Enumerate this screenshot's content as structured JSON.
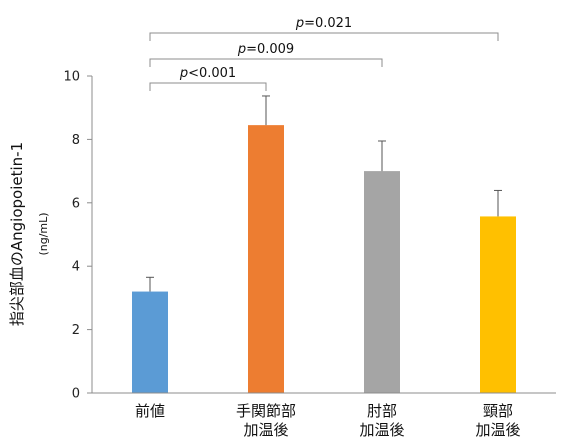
{
  "chart_data": {
    "type": "bar",
    "categories": [
      [
        "前値"
      ],
      [
        "手関節部",
        "加温後"
      ],
      [
        "肘部",
        "加温後"
      ],
      [
        "頸部",
        "加温後"
      ]
    ],
    "values": [
      3.2,
      8.45,
      7.0,
      5.57
    ],
    "errors": [
      0.45,
      0.92,
      0.95,
      0.82
    ],
    "colors": [
      "#5B9BD5",
      "#ED7D31",
      "#A5A5A5",
      "#FFC000"
    ],
    "ylabel": "指尖部血のAngiopoietin-1",
    "yunit": "(ng/mL)",
    "ylim": [
      0,
      10
    ],
    "yticks": [
      0,
      2,
      4,
      6,
      8,
      10
    ],
    "grid": false,
    "comparisons": [
      {
        "from": 0,
        "to": 1,
        "p_symbol": "p",
        "p_text": "<0.001"
      },
      {
        "from": 0,
        "to": 2,
        "p_symbol": "p",
        "p_text": "=0.009"
      },
      {
        "from": 0,
        "to": 3,
        "p_symbol": "p",
        "p_text": "=0.021"
      }
    ]
  }
}
